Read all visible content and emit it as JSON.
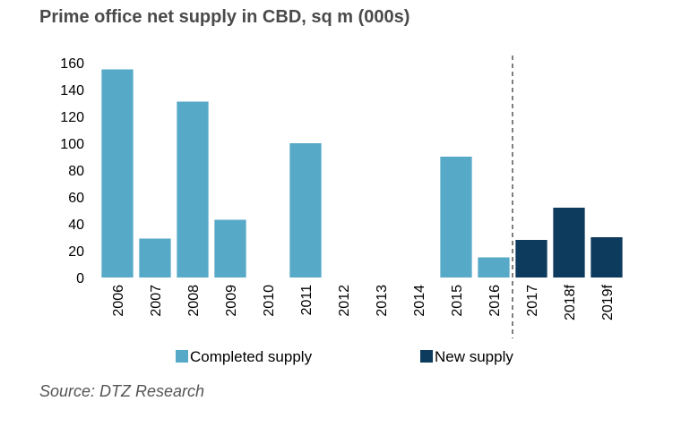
{
  "title": "Prime office net supply in CBD, sq m (000s)",
  "source": "Source: DTZ Research",
  "colors": {
    "completed": "#57a9c8",
    "new": "#0d3b5e"
  },
  "chart_data": {
    "type": "bar",
    "categories": [
      "2006",
      "2007",
      "2008",
      "2009",
      "2010",
      "2011",
      "2012",
      "2013",
      "2014",
      "2015",
      "2016",
      "2017",
      "2018f",
      "2019f"
    ],
    "series": [
      {
        "name": "Completed supply",
        "values": [
          155,
          29,
          131,
          43,
          0,
          100,
          0,
          0,
          0,
          90,
          15,
          null,
          null,
          null
        ]
      },
      {
        "name": "New supply",
        "values": [
          null,
          null,
          null,
          null,
          null,
          null,
          null,
          null,
          null,
          null,
          null,
          28,
          52,
          30
        ]
      }
    ],
    "ylim": [
      0,
      160
    ],
    "yticks": [
      "0",
      "20",
      "40",
      "60",
      "80",
      "100",
      "120",
      "140",
      "160"
    ],
    "divider_after": "2016",
    "legend": "bottom",
    "grid": false
  }
}
